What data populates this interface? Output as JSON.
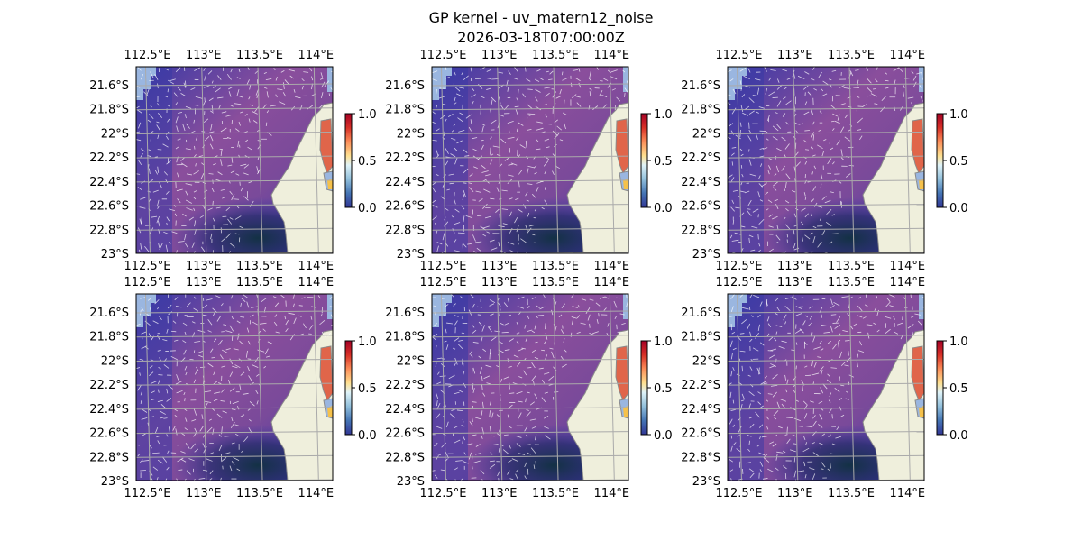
{
  "figure": {
    "title_line1": "GP kernel - uv_matern12_noise",
    "title_line2": "2026-03-18T07:00:00Z"
  },
  "chart_data": {
    "type": "heatmap",
    "layout": "2 rows x 3 columns of map panels",
    "panel_count": 6,
    "x_axis": {
      "ticks": [
        "112.5°E",
        "113°E",
        "113.5°E",
        "114°E"
      ],
      "tick_values": [
        112.5,
        113.0,
        113.5,
        114.0
      ],
      "range": [
        112.4,
        114.15
      ]
    },
    "y_axis": {
      "ticks": [
        "21.6°S",
        "21.8°S",
        "22°S",
        "22.2°S",
        "22.4°S",
        "22.6°S",
        "22.8°S",
        "23°S"
      ],
      "tick_values": [
        -21.6,
        -21.8,
        -22.0,
        -22.2,
        -22.4,
        -22.6,
        -22.8,
        -23.0
      ],
      "range": [
        -23.0,
        -21.45
      ]
    },
    "colorbar": {
      "ticks": [
        "0.0",
        "0.5",
        "1.0"
      ],
      "tick_values": [
        0.0,
        0.5,
        1.0
      ],
      "range": [
        0.0,
        1.0
      ],
      "colormap": "RdYlBu_r"
    },
    "grid": true,
    "overlay": "wind vectors (white arrows)",
    "colors": {
      "field_low": "#3a3aa6",
      "field_high": "#8a4e9c",
      "field_dark": "#0f3040",
      "land": "#efefdc",
      "coast": "#8a8a8a",
      "water_mask": "#9ab6e0",
      "gridline": "#aaaaaa"
    }
  }
}
